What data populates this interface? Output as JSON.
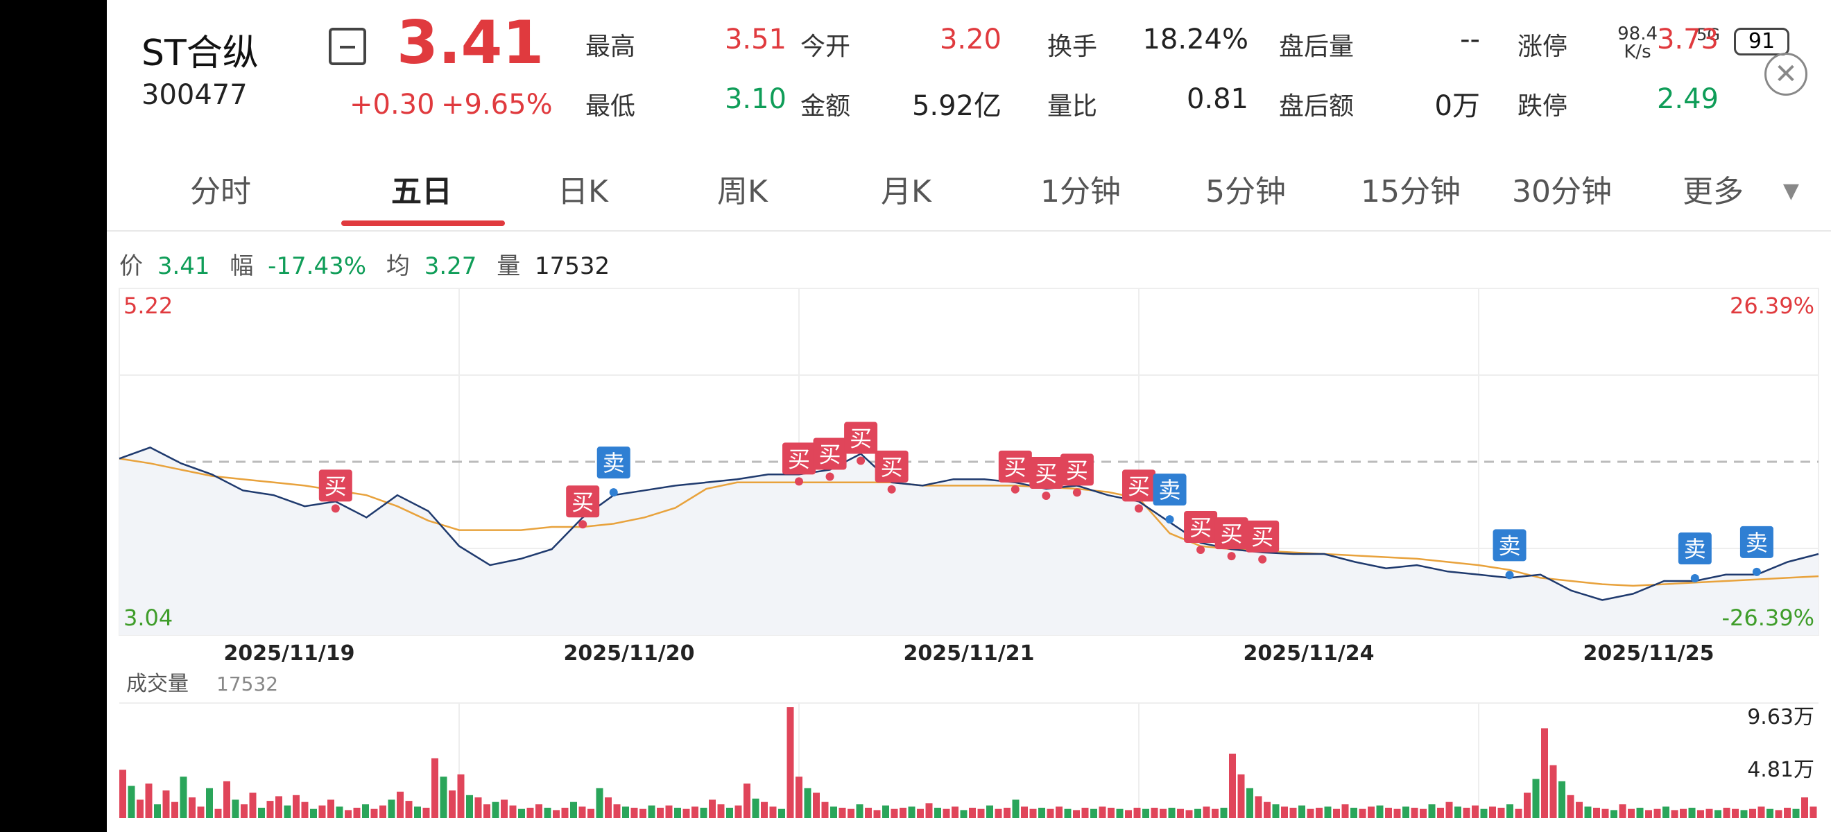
{
  "header": {
    "stock_name": "ST合纵",
    "stock_code": "300477",
    "price": "3.41",
    "change": "+0.30",
    "change_pct": "+9.65%",
    "quotes": [
      {
        "label": "最高",
        "value": "3.51",
        "color": "red"
      },
      {
        "label": "今开",
        "value": "3.20",
        "color": "red"
      },
      {
        "label": "换手",
        "value": "18.24%",
        "color": "dark"
      },
      {
        "label": "盘后量",
        "value": "--",
        "color": "dark"
      },
      {
        "label": "涨停",
        "value": "3.73",
        "color": "red"
      },
      {
        "label": "最低",
        "value": "3.10",
        "color": "green"
      },
      {
        "label": "金额",
        "value": "5.92亿",
        "color": "dark"
      },
      {
        "label": "量比",
        "value": "0.81",
        "color": "dark"
      },
      {
        "label": "盘后额",
        "value": "0万",
        "color": "dark"
      },
      {
        "label": "跌停",
        "value": "2.49",
        "color": "green"
      }
    ]
  },
  "status_bar": {
    "net_speed": "98.4",
    "net_unit": "K/s",
    "signal": "5G",
    "battery": "91"
  },
  "tabs": [
    "分时",
    "五日",
    "日K",
    "周K",
    "月K",
    "1分钟",
    "5分钟",
    "15分钟",
    "30分钟",
    "更多"
  ],
  "active_tab": "五日",
  "info_row": {
    "price_label": "价",
    "price": "3.41",
    "range_label": "幅",
    "range": "-17.43%",
    "avg_label": "均",
    "avg": "3.27",
    "vol_label": "量",
    "vol": "17532"
  },
  "chart_data": {
    "type": "line",
    "price_axis": {
      "max": "5.22",
      "min": "3.04",
      "pct_max": "26.39%",
      "pct_min": "-26.39%",
      "prev_close": 4.13
    },
    "dates": [
      "2025/11/19",
      "2025/11/20",
      "2025/11/21",
      "2025/11/24",
      "2025/11/25"
    ],
    "price_series": {
      "name": "价",
      "color": "#1f3a6e",
      "values": [
        4.15,
        4.22,
        4.12,
        4.05,
        3.95,
        3.92,
        3.85,
        3.88,
        3.78,
        3.92,
        3.82,
        3.6,
        3.48,
        3.52,
        3.58,
        3.78,
        3.92,
        3.95,
        3.98,
        4.0,
        4.02,
        4.05,
        4.05,
        4.08,
        4.18,
        4.0,
        3.98,
        4.02,
        4.02,
        4.0,
        3.96,
        3.98,
        3.92,
        3.88,
        3.75,
        3.62,
        3.58,
        3.56,
        3.55,
        3.55,
        3.5,
        3.46,
        3.48,
        3.44,
        3.42,
        3.4,
        3.42,
        3.32,
        3.26,
        3.3,
        3.38,
        3.38,
        3.42,
        3.42,
        3.5,
        3.55
      ]
    },
    "avg_series": {
      "name": "均",
      "color": "#e8a23c",
      "values": [
        4.15,
        4.12,
        4.08,
        4.04,
        4.02,
        4.0,
        3.98,
        3.95,
        3.92,
        3.85,
        3.76,
        3.7,
        3.7,
        3.7,
        3.72,
        3.72,
        3.74,
        3.78,
        3.84,
        3.96,
        4.0,
        4.0,
        4.0,
        4.0,
        4.0,
        4.0,
        3.98,
        3.98,
        3.98,
        3.98,
        3.97,
        3.96,
        3.94,
        3.9,
        3.68,
        3.6,
        3.58,
        3.57,
        3.56,
        3.55,
        3.54,
        3.53,
        3.52,
        3.5,
        3.48,
        3.45,
        3.4,
        3.38,
        3.36,
        3.35,
        3.36,
        3.37,
        3.38,
        3.39,
        3.4,
        3.41
      ]
    },
    "markers": [
      {
        "i": 7,
        "label": "买",
        "type": "buy"
      },
      {
        "i": 15,
        "label": "买",
        "type": "buy"
      },
      {
        "i": 16,
        "label": "卖",
        "type": "sell"
      },
      {
        "i": 22,
        "label": "买",
        "type": "buy"
      },
      {
        "i": 23,
        "label": "买",
        "type": "buy"
      },
      {
        "i": 24,
        "label": "买",
        "type": "buy"
      },
      {
        "i": 25,
        "label": "买",
        "type": "buy"
      },
      {
        "i": 29,
        "label": "买",
        "type": "buy"
      },
      {
        "i": 30,
        "label": "买",
        "type": "buy"
      },
      {
        "i": 31,
        "label": "买",
        "type": "buy"
      },
      {
        "i": 33,
        "label": "买",
        "type": "buy"
      },
      {
        "i": 34,
        "label": "卖",
        "type": "sell"
      },
      {
        "i": 35,
        "label": "买",
        "type": "buy"
      },
      {
        "i": 36,
        "label": "买",
        "type": "buy"
      },
      {
        "i": 37,
        "label": "买",
        "type": "buy"
      },
      {
        "i": 45,
        "label": "卖",
        "type": "sell"
      },
      {
        "i": 51,
        "label": "卖",
        "type": "sell"
      },
      {
        "i": 53,
        "label": "卖",
        "type": "sell"
      }
    ],
    "volume": {
      "label": "成交量",
      "value": "17532",
      "max_label": "9.63万",
      "mid_label": "4.81万",
      "max": 9.63,
      "bars": [
        4.2,
        2.8,
        1.6,
        3.0,
        1.2,
        2.4,
        1.4,
        3.6,
        1.8,
        1.0,
        2.6,
        0.8,
        3.2,
        1.6,
        1.2,
        2.2,
        0.9,
        1.5,
        1.9,
        1.1,
        2.0,
        1.4,
        0.8,
        1.1,
        1.6,
        1.0,
        0.7,
        0.9,
        1.2,
        0.8,
        1.1,
        1.6,
        2.3,
        1.5,
        1.0,
        0.9,
        5.2,
        3.6,
        2.4,
        3.8,
        2.0,
        1.8,
        1.2,
        1.4,
        1.6,
        1.1,
        0.8,
        0.9,
        1.2,
        0.9,
        0.7,
        0.9,
        1.4,
        1.0,
        0.8,
        2.6,
        1.8,
        1.2,
        1.0,
        0.9,
        0.8,
        1.1,
        0.9,
        1.1,
        0.9,
        0.8,
        1.0,
        0.9,
        1.6,
        1.2,
        0.9,
        1.1,
        3.0,
        1.7,
        1.4,
        1.0,
        0.8,
        9.63,
        3.6,
        2.6,
        2.2,
        1.4,
        1.0,
        0.9,
        0.8,
        1.2,
        0.9,
        0.7,
        1.1,
        0.8,
        0.9,
        1.0,
        0.8,
        1.3,
        0.9,
        0.8,
        1.0,
        0.7,
        0.9,
        0.8,
        1.1,
        0.8,
        0.9,
        1.6,
        1.0,
        0.8,
        0.9,
        0.8,
        1.0,
        0.8,
        0.7,
        0.9,
        0.8,
        1.0,
        0.9,
        0.8,
        0.7,
        0.9,
        0.8,
        0.9,
        0.8,
        0.9,
        0.8,
        0.7,
        0.8,
        1.0,
        0.8,
        0.9,
        5.6,
        3.8,
        2.6,
        1.9,
        1.4,
        1.2,
        1.0,
        0.9,
        1.1,
        0.8,
        0.9,
        1.0,
        0.8,
        1.2,
        0.9,
        0.8,
        1.0,
        1.1,
        0.9,
        0.8,
        1.0,
        0.9,
        0.8,
        1.2,
        0.9,
        1.4,
        1.0,
        0.9,
        1.1,
        0.8,
        1.0,
        0.9,
        1.2,
        0.8,
        2.2,
        3.4,
        7.8,
        4.6,
        3.2,
        2.0,
        1.4,
        1.0,
        0.9,
        0.8,
        0.7,
        1.2,
        0.8,
        0.9,
        0.7,
        0.8,
        1.0,
        0.7,
        0.8,
        0.9,
        0.7,
        0.8,
        0.7,
        0.9,
        0.8,
        0.7,
        0.8,
        1.0,
        0.8,
        0.7,
        0.9,
        0.8,
        1.8,
        1.0
      ]
    }
  }
}
